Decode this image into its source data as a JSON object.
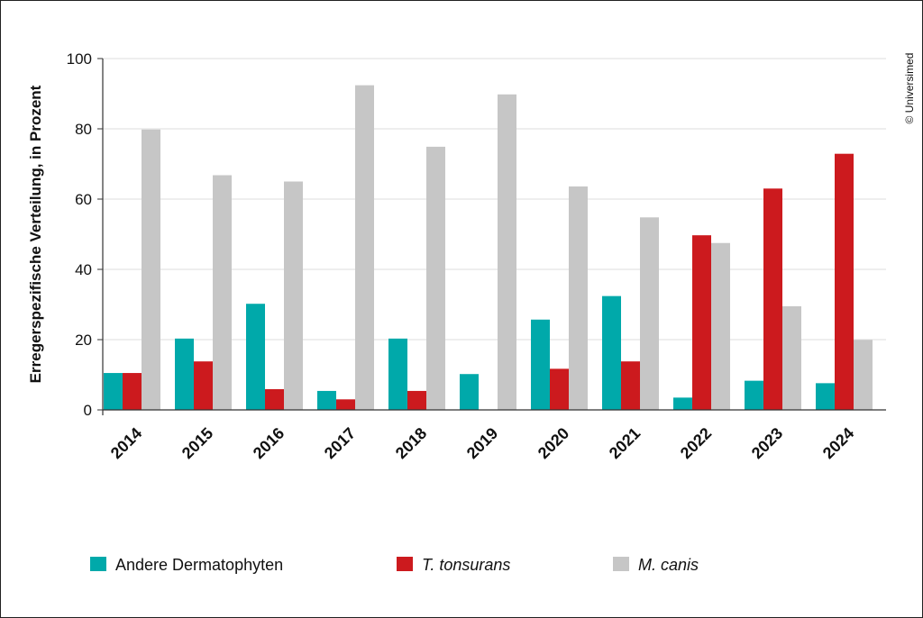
{
  "chart_data": {
    "type": "bar",
    "ylabel": "Erregerspezifische Verteilung, in Prozent",
    "ylim": [
      0,
      100
    ],
    "yticks": [
      0,
      20,
      40,
      60,
      80,
      100
    ],
    "grid": true,
    "legend_position": "bottom",
    "categories": [
      "2014",
      "2015",
      "2016",
      "2017",
      "2018",
      "2019",
      "2020",
      "2021",
      "2022",
      "2023",
      "2024"
    ],
    "series": [
      {
        "name": "Andere Dermatophyten",
        "color": "#00a9aa",
        "values": [
          10.5,
          20.3,
          30.2,
          5.4,
          20.3,
          10.2,
          25.7,
          32.4,
          3.5,
          8.3,
          7.6
        ]
      },
      {
        "name": "T. tonsurans",
        "color": "#cc1a1e",
        "italic": true,
        "values": [
          10.5,
          13.8,
          5.9,
          3.0,
          5.4,
          0,
          11.7,
          13.8,
          49.7,
          63.0,
          72.9
        ]
      },
      {
        "name": "M. canis",
        "color": "#c6c6c6",
        "italic": true,
        "values": [
          79.8,
          66.8,
          65.0,
          92.4,
          74.9,
          89.8,
          63.6,
          54.8,
          47.5,
          29.5,
          19.9
        ]
      }
    ]
  },
  "copyright": "© Universimed"
}
